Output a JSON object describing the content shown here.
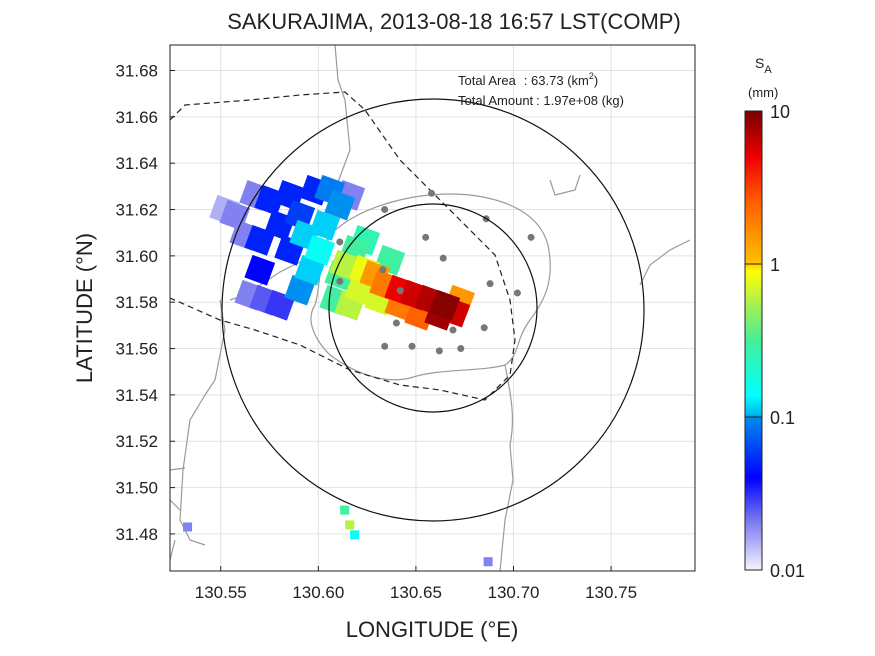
{
  "chart_data": {
    "type": "heatmap",
    "title": "SAKURAJIMA, 2013-08-18 16:57 LST(COMP)",
    "xlabel": "LONGITUDE (°E)",
    "ylabel": "LATITUDE (°N)",
    "xlim": [
      130.524,
      130.793
    ],
    "ylim": [
      31.464,
      31.691
    ],
    "xticks": [
      "130.55",
      "130.60",
      "130.65",
      "130.70",
      "130.75"
    ],
    "xtick_values": [
      130.55,
      130.6,
      130.65,
      130.7,
      130.75
    ],
    "yticks": [
      "31.48",
      "31.50",
      "31.52",
      "31.54",
      "31.56",
      "31.58",
      "31.60",
      "31.62",
      "31.64",
      "31.66",
      "31.68"
    ],
    "ytick_values": [
      31.48,
      31.5,
      31.52,
      31.54,
      31.56,
      31.58,
      31.6,
      31.62,
      31.64,
      31.66,
      31.68
    ],
    "grid": true,
    "annotations": {
      "area_label": "Total Area",
      "area_value": ": 63.73 (km",
      "area_sup": "2",
      "area_close": ")",
      "amount_label": "Total Amount",
      "amount_value": ": 1.97e+08 (kg)"
    },
    "colorbar": {
      "title_main": "S",
      "title_sub": "A",
      "unit": "(mm)",
      "scale": "log",
      "ticks": [
        "10",
        "1",
        "0.1",
        "0.01"
      ],
      "tick_values": [
        10,
        1,
        0.1,
        0.01
      ]
    },
    "range_circles_center": [
      130.6575,
      31.5778
    ],
    "stations": [
      [
        130.658,
        31.627
      ],
      [
        130.634,
        31.62
      ],
      [
        130.686,
        31.616
      ],
      [
        130.709,
        31.608
      ],
      [
        130.611,
        31.606
      ],
      [
        130.655,
        31.608
      ],
      [
        130.664,
        31.599
      ],
      [
        130.633,
        31.594
      ],
      [
        130.688,
        31.588
      ],
      [
        130.702,
        31.584
      ],
      [
        130.611,
        31.589
      ],
      [
        130.642,
        31.585
      ],
      [
        130.685,
        31.569
      ],
      [
        130.669,
        31.568
      ],
      [
        130.64,
        31.571
      ],
      [
        130.634,
        31.561
      ],
      [
        130.648,
        31.561
      ],
      [
        130.662,
        31.559
      ],
      [
        130.673,
        31.56
      ]
    ],
    "cells": [
      [
        130.5649,
        31.583,
        0.02
      ],
      [
        130.5623,
        31.6089,
        0.02
      ],
      [
        130.5572,
        31.6175,
        0.02
      ],
      [
        130.5725,
        31.5809,
        0.025
      ],
      [
        130.5802,
        31.5787,
        0.03
      ],
      [
        130.6161,
        31.6261,
        0.02
      ],
      [
        130.552,
        31.6197,
        0.015
      ],
      [
        130.5674,
        31.6261,
        0.02
      ],
      [
        130.5853,
        31.6024,
        0.05
      ],
      [
        130.5802,
        31.6132,
        0.05
      ],
      [
        130.5751,
        31.624,
        0.05
      ],
      [
        130.57,
        31.6067,
        0.05
      ],
      [
        130.5853,
        31.6261,
        0.05
      ],
      [
        130.5905,
        31.6175,
        0.06
      ],
      [
        130.5982,
        31.6283,
        0.05
      ],
      [
        130.57,
        31.5938,
        0.04
      ],
      [
        130.6007,
        31.6024,
        0.15
      ],
      [
        130.6033,
        31.6132,
        0.12
      ],
      [
        130.611,
        31.6219,
        0.1
      ],
      [
        130.593,
        31.6089,
        0.12
      ],
      [
        130.5956,
        31.5938,
        0.12
      ],
      [
        130.5905,
        31.5852,
        0.1
      ],
      [
        130.6058,
        31.6283,
        0.09
      ],
      [
        130.611,
        31.5916,
        0.3
      ],
      [
        130.6186,
        31.6024,
        0.3
      ],
      [
        130.6084,
        31.5809,
        0.3
      ],
      [
        130.6238,
        31.6067,
        0.25
      ],
      [
        130.6366,
        31.5981,
        0.3
      ],
      [
        130.6238,
        31.5938,
        0.8
      ],
      [
        130.6315,
        31.5809,
        0.7
      ],
      [
        130.6212,
        31.5852,
        0.7
      ],
      [
        130.6161,
        31.5787,
        0.6
      ],
      [
        130.6135,
        31.596,
        0.6
      ],
      [
        130.634,
        31.5873,
        2
      ],
      [
        130.6417,
        31.5787,
        2
      ],
      [
        130.6519,
        31.5744,
        2.5
      ],
      [
        130.6724,
        31.5809,
        1.5
      ],
      [
        130.6289,
        31.5916,
        1.5
      ],
      [
        130.6417,
        31.5852,
        5
      ],
      [
        130.6494,
        31.583,
        6
      ],
      [
        130.6571,
        31.5809,
        7
      ],
      [
        130.6699,
        31.5757,
        6
      ],
      [
        130.6622,
        31.5744,
        8
      ],
      [
        130.6648,
        31.5787,
        9
      ],
      [
        130.6135,
        31.4903,
        0.3
      ],
      [
        130.6161,
        31.4839,
        0.6
      ],
      [
        130.6186,
        31.4796,
        0.15
      ],
      [
        130.533,
        31.483,
        0.02
      ],
      [
        130.687,
        31.468,
        0.02
      ]
    ]
  }
}
